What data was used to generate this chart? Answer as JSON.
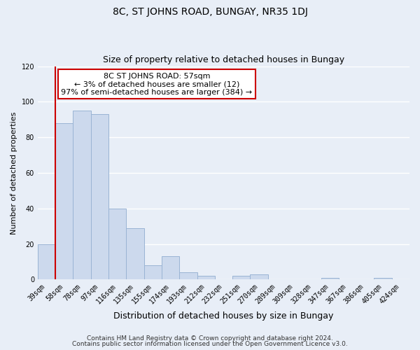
{
  "title": "8C, ST JOHNS ROAD, BUNGAY, NR35 1DJ",
  "subtitle": "Size of property relative to detached houses in Bungay",
  "xlabel": "Distribution of detached houses by size in Bungay",
  "ylabel": "Number of detached properties",
  "bar_labels": [
    "39sqm",
    "58sqm",
    "78sqm",
    "97sqm",
    "116sqm",
    "135sqm",
    "155sqm",
    "174sqm",
    "193sqm",
    "212sqm",
    "232sqm",
    "251sqm",
    "270sqm",
    "289sqm",
    "309sqm",
    "328sqm",
    "347sqm",
    "367sqm",
    "386sqm",
    "405sqm",
    "424sqm"
  ],
  "bar_values": [
    20,
    88,
    95,
    93,
    40,
    29,
    8,
    13,
    4,
    2,
    0,
    2,
    3,
    0,
    0,
    0,
    1,
    0,
    0,
    1,
    0
  ],
  "bar_color": "#ccd9ed",
  "bar_edge_color": "#9ab4d4",
  "highlight_line_color": "#cc0000",
  "annotation_line1": "8C ST JOHNS ROAD: 57sqm",
  "annotation_line2": "← 3% of detached houses are smaller (12)",
  "annotation_line3": "97% of semi-detached houses are larger (384) →",
  "annotation_box_facecolor": "#ffffff",
  "annotation_box_edgecolor": "#cc0000",
  "ylim": [
    0,
    120
  ],
  "yticks": [
    0,
    20,
    40,
    60,
    80,
    100,
    120
  ],
  "footer1": "Contains HM Land Registry data © Crown copyright and database right 2024.",
  "footer2": "Contains public sector information licensed under the Open Government Licence v3.0.",
  "fig_facecolor": "#e8eef7",
  "plot_facecolor": "#e8eef7",
  "grid_color": "#ffffff",
  "title_fontsize": 10,
  "subtitle_fontsize": 9,
  "xlabel_fontsize": 9,
  "ylabel_fontsize": 8,
  "tick_fontsize": 7,
  "annotation_fontsize": 8,
  "footer_fontsize": 6.5
}
